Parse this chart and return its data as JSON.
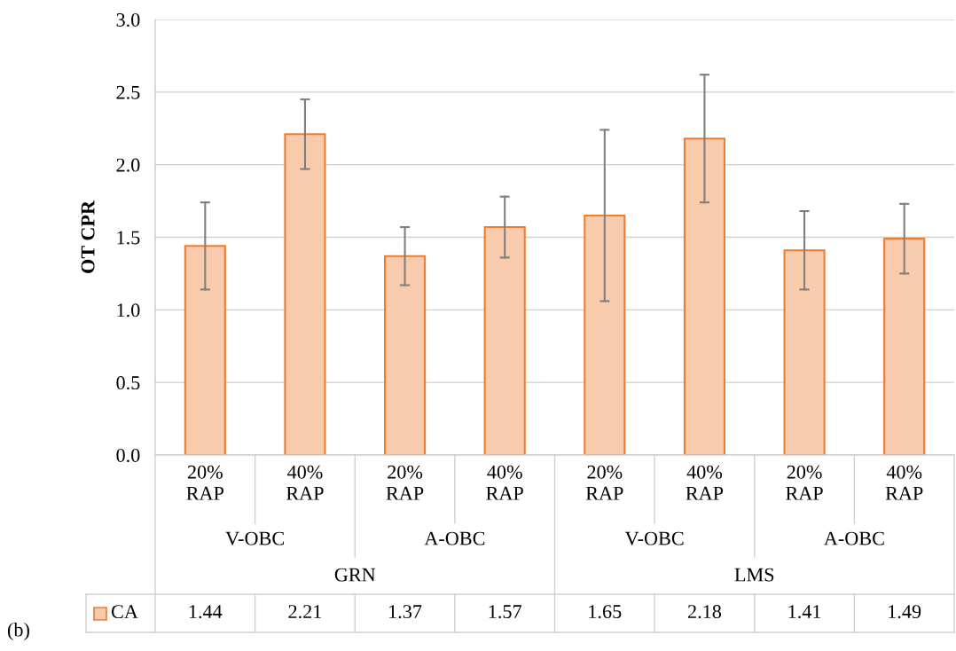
{
  "chart_data": {
    "type": "bar",
    "ylabel": "OT CPR",
    "categories": [
      "20%\nRAP",
      "40%\nRAP",
      "20%\nRAP",
      "40%\nRAP",
      "20%\nRAP",
      "40%\nRAP",
      "20%\nRAP",
      "40%\nRAP"
    ],
    "series": [
      {
        "name": "CA",
        "color": "#f8cbad",
        "values": [
          1.44,
          2.21,
          1.37,
          1.57,
          1.65,
          2.18,
          1.41,
          1.49
        ],
        "errors": [
          0.3,
          0.24,
          0.2,
          0.21,
          0.59,
          0.44,
          0.27,
          0.24
        ]
      }
    ],
    "ylim": [
      0,
      3.0
    ],
    "yticks": [
      {
        "value": 0,
        "label": "0.0"
      },
      {
        "value": 0.5,
        "label": "0.5"
      },
      {
        "value": 1,
        "label": "1.0"
      },
      {
        "value": 1.5,
        "label": "1.5"
      },
      {
        "value": 2,
        "label": "2.0"
      },
      {
        "value": 2.5,
        "label": "2.5"
      },
      {
        "value": 3,
        "label": "3.0"
      }
    ],
    "grid": "y",
    "legend": "bottom",
    "data_labels": true,
    "annotations": [
      "V-OBC",
      "A-OBC",
      "V-OBC",
      "A-OBC",
      "GRN",
      "LMS",
      "(b)"
    ]
  }
}
